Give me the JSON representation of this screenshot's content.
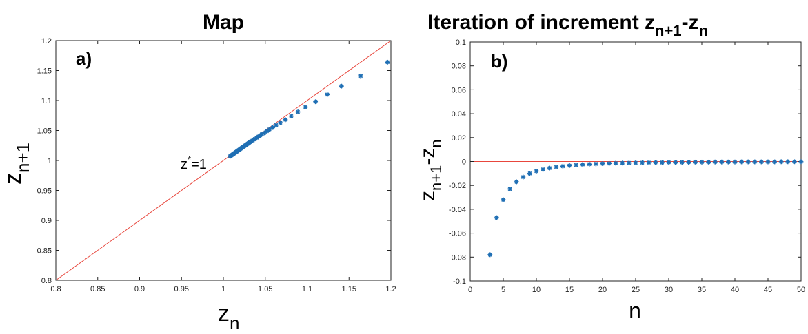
{
  "chart_data": [
    {
      "type": "scatter",
      "panel_tag": "a)",
      "title": "Map",
      "xlabel": "z",
      "xlabel_sub": "n",
      "ylabel": "z",
      "ylabel_sub": "n+1",
      "xlim": [
        0.8,
        1.2
      ],
      "ylim": [
        0.8,
        1.2
      ],
      "xticks": [
        "0.8",
        "0.85",
        "0.9",
        "0.95",
        "1",
        "1.05",
        "1.1",
        "1.15",
        "1.2"
      ],
      "yticks": [
        "0.8",
        "0.85",
        "0.9",
        "0.95",
        "1",
        "1.05",
        "1.1",
        "1.15",
        "1.2"
      ],
      "annotation": {
        "text": "z",
        "sup": "*",
        "rest": "=1",
        "x": 0.958,
        "y": 0.998
      },
      "reference_line": {
        "type": "diagonal",
        "color": "#e8463c",
        "points": [
          [
            0.8,
            0.8
          ],
          [
            1.2,
            1.2
          ]
        ]
      },
      "marker_color": "#1f6fb4",
      "series": [
        {
          "marker": "asterisk",
          "x": [
            1.196,
            1.164,
            1.141,
            1.124,
            1.11,
            1.098,
            1.089,
            1.081,
            1.074,
            1.068,
            1.063,
            1.059,
            1.055,
            1.052,
            1.049,
            1.046,
            1.044,
            1.042,
            1.04,
            1.038,
            1.036,
            1.035,
            1.033,
            1.032,
            1.031,
            1.03,
            1.029,
            1.028,
            1.027,
            1.026,
            1.025,
            1.024,
            1.023,
            1.022,
            1.021,
            1.02,
            1.019,
            1.018,
            1.017,
            1.016,
            1.015,
            1.014,
            1.013,
            1.012,
            1.011,
            1.01,
            1.009,
            1.008
          ],
          "y": [
            1.164,
            1.141,
            1.124,
            1.11,
            1.098,
            1.089,
            1.081,
            1.074,
            1.068,
            1.063,
            1.059,
            1.055,
            1.052,
            1.049,
            1.046,
            1.044,
            1.042,
            1.04,
            1.038,
            1.036,
            1.035,
            1.033,
            1.032,
            1.031,
            1.03,
            1.029,
            1.028,
            1.027,
            1.026,
            1.025,
            1.024,
            1.023,
            1.022,
            1.021,
            1.02,
            1.019,
            1.018,
            1.017,
            1.016,
            1.015,
            1.014,
            1.013,
            1.012,
            1.011,
            1.01,
            1.009,
            1.008,
            1.007
          ]
        }
      ]
    },
    {
      "type": "scatter",
      "panel_tag": "b)",
      "title": "Iteration of increment z",
      "title_sub1": "n+1",
      "title_mid": "-z",
      "title_sub2": "n",
      "xlabel": "n",
      "ylabel": "z",
      "ylabel_sub1": "n+1",
      "ylabel_mid": "-z",
      "ylabel_sub2": "n",
      "xlim": [
        0,
        50
      ],
      "ylim": [
        -0.1,
        0.1
      ],
      "xticks": [
        "0",
        "5",
        "10",
        "15",
        "20",
        "25",
        "30",
        "35",
        "40",
        "45",
        "50"
      ],
      "yticks": [
        "-0.1",
        "-0.08",
        "-0.06",
        "-0.04",
        "-0.02",
        "0",
        "0.02",
        "0.04",
        "0.06",
        "0.08",
        "0.1"
      ],
      "reference_line": {
        "type": "horizontal",
        "color": "#e8463c",
        "y": 0
      },
      "marker_color": "#1f6fb4",
      "series": [
        {
          "marker": "asterisk",
          "x": [
            3,
            4,
            5,
            6,
            7,
            8,
            9,
            10,
            11,
            12,
            13,
            14,
            15,
            16,
            17,
            18,
            19,
            20,
            21,
            22,
            23,
            24,
            25,
            26,
            27,
            28,
            29,
            30,
            31,
            32,
            33,
            34,
            35,
            36,
            37,
            38,
            39,
            40,
            41,
            42,
            43,
            44,
            45,
            46,
            47,
            48,
            49,
            50
          ],
          "y": [
            -0.078,
            -0.047,
            -0.032,
            -0.023,
            -0.017,
            -0.013,
            -0.01,
            -0.008,
            -0.0066,
            -0.0055,
            -0.0046,
            -0.0039,
            -0.0034,
            -0.0029,
            -0.0025,
            -0.0022,
            -0.002,
            -0.0018,
            -0.0016,
            -0.0014,
            -0.0013,
            -0.0012,
            -0.0011,
            -0.001,
            -0.0009,
            -0.0008,
            -0.0008,
            -0.0007,
            -0.0007,
            -0.0006,
            -0.0006,
            -0.0005,
            -0.0005,
            -0.0005,
            -0.0004,
            -0.0004,
            -0.0004,
            -0.0004,
            -0.0003,
            -0.0003,
            -0.0003,
            -0.0003,
            -0.0003,
            -0.0003,
            -0.0002,
            -0.0002,
            -0.0002,
            -0.0002
          ]
        }
      ]
    }
  ]
}
